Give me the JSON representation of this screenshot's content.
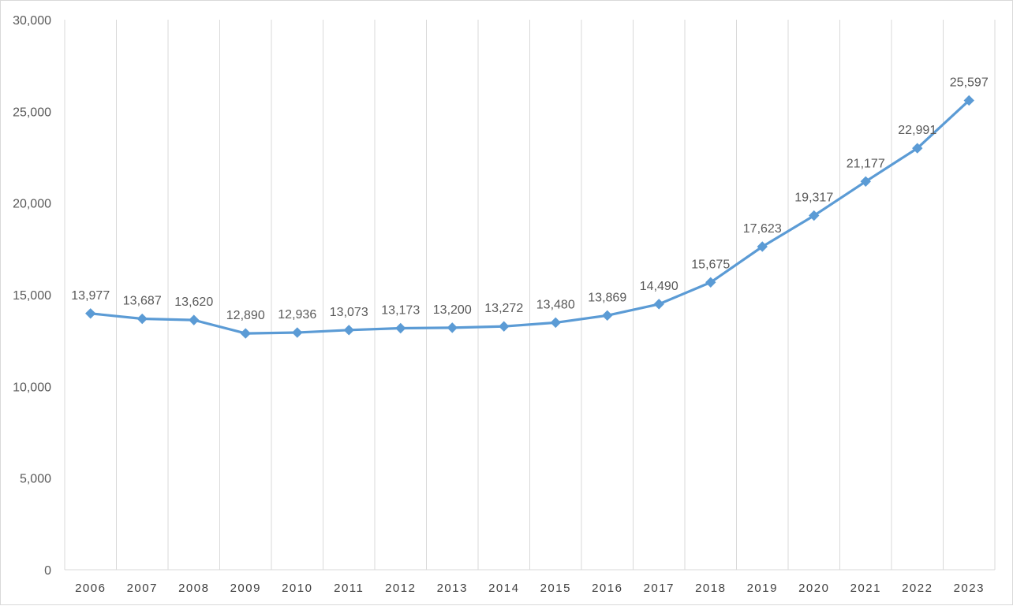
{
  "chart_data": {
    "type": "line",
    "title": "",
    "xlabel": "",
    "ylabel": "",
    "ylim": [
      0,
      30000
    ],
    "yticks": [
      0,
      5000,
      10000,
      15000,
      20000,
      25000,
      30000
    ],
    "ytick_labels": [
      "0",
      "5,000",
      "10,000",
      "15,000",
      "20,000",
      "25,000",
      "30,000"
    ],
    "grid": "vertical",
    "legend": "none",
    "categories": [
      "2006",
      "2007",
      "2008",
      "2009",
      "2010",
      "2011",
      "2012",
      "2013",
      "2014",
      "2015",
      "2016",
      "2017",
      "2018",
      "2019",
      "2020",
      "2021",
      "2022",
      "2023"
    ],
    "series": [
      {
        "color": "#5b9bd5",
        "marker": "diamond",
        "values": [
          13977,
          13687,
          13620,
          12890,
          12936,
          13073,
          13173,
          13200,
          13272,
          13480,
          13869,
          14490,
          15675,
          17623,
          19317,
          21177,
          22991,
          25597
        ],
        "labels": [
          "13,977",
          "13,687",
          "13,620",
          "12,890",
          "12,936",
          "13,073",
          "13,173",
          "13,200",
          "13,272",
          "13,480",
          "13,869",
          "14,490",
          "15,675",
          "17,623",
          "19,317",
          "21,177",
          "22,991",
          "25,597"
        ]
      }
    ],
    "colors": {
      "line": "#5b9bd5",
      "grid": "#d9d9d9",
      "axis": "#d9d9d9",
      "text": "#595959"
    }
  }
}
